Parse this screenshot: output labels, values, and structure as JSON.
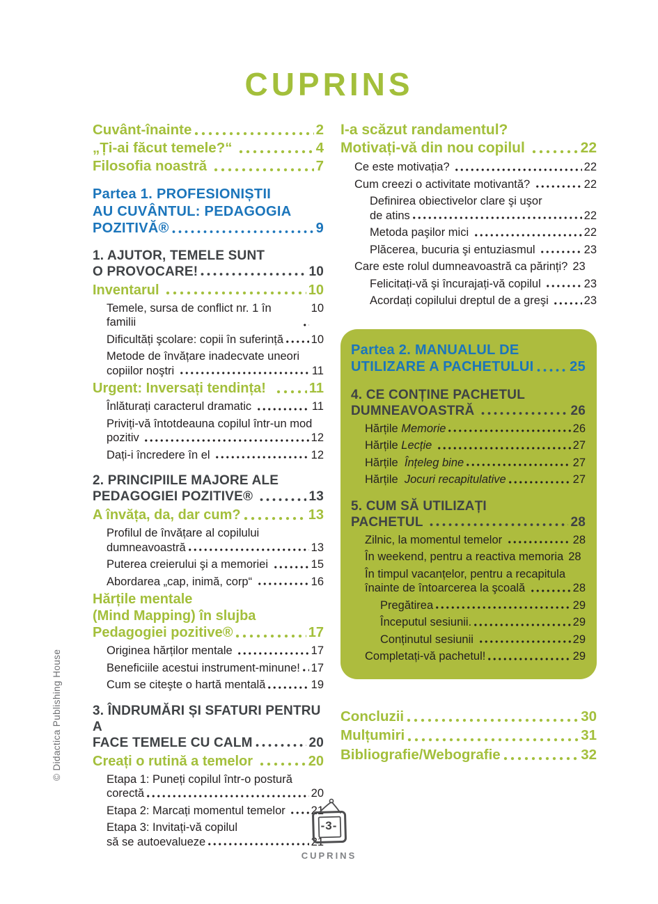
{
  "title": "CUPRINS",
  "copyright": "© Didactica Publishing House",
  "footer": {
    "page_number": "-3-",
    "label": "CUPRINS",
    "frame_icon": "hand-drawn hanging picture frame"
  },
  "colors": {
    "green": "#a3bf3b",
    "box_green": "#adbc3e",
    "blue": "#1b75bb",
    "dark": "#3f4245",
    "body": "#231f20",
    "gray": "#808285"
  },
  "toc": {
    "left": [
      {
        "style": "front",
        "end": "Cuvânt-înainte",
        "page": "2"
      },
      {
        "style": "front",
        "end": "„Ți-ai făcut temele?“ ",
        "page": "4"
      },
      {
        "style": "front",
        "end": "Filosofia noastră ",
        "page": "7"
      },
      {
        "style": "part",
        "lines": [
          "Partea 1. PROFESIONIȘTII",
          "AU CUVÂNTUL: PEDAGOGIA"
        ],
        "end": "POZITIVĂ®",
        "page": "9"
      },
      {
        "style": "chapter",
        "lines": [
          "1. AJUTOR, TEMELE SUNT"
        ],
        "end": "O PROVOCARE!",
        "page": "10"
      },
      {
        "style": "section",
        "end": "Inventarul ",
        "page": "10"
      },
      {
        "style": "sub",
        "end": "Temele, sursa de conflict nr. 1 în familii",
        "page": "10"
      },
      {
        "style": "sub",
        "end": "Dificultăți şcolare: copii în suferință",
        "page": "10"
      },
      {
        "style": "sub",
        "lines": [
          "Metode de învățare inadecvate uneori"
        ],
        "end": "copiilor noştri ",
        "page": "11"
      },
      {
        "style": "section",
        "end": "Urgent: Inversați tendința!  ",
        "page": "11"
      },
      {
        "style": "sub",
        "end": "Înlăturați caracterul dramatic ",
        "page": "11"
      },
      {
        "style": "sub",
        "lines": [
          "Priviți-vă întotdeauna copilul într-un mod"
        ],
        "end": "pozitiv ",
        "page": "12"
      },
      {
        "style": "sub",
        "end": "Dați-i încredere în el ",
        "page": "12"
      },
      {
        "style": "chapter",
        "lines": [
          "2. PRINCIPIILE MAJORE ALE"
        ],
        "end": "PEDAGOGIEI POZITIVE® ",
        "page": "13"
      },
      {
        "style": "section",
        "end": "A învăța, da, dar cum?",
        "page": "13"
      },
      {
        "style": "sub",
        "lines": [
          "Profilul de învățare al copilului"
        ],
        "end": "dumneavoastră",
        "page": "13"
      },
      {
        "style": "sub",
        "end": "Puterea creierului şi a memoriei ",
        "page": "15"
      },
      {
        "style": "sub",
        "end": "Abordarea „cap, inimă, corp“ ",
        "page": "16"
      },
      {
        "style": "section",
        "lines": [
          "Hărțile mentale",
          "(Mind Mapping) în slujba"
        ],
        "end": "Pedagogiei pozitive®",
        "page": "17"
      },
      {
        "style": "sub",
        "end": "Originea hărților mentale ",
        "page": "17"
      },
      {
        "style": "sub",
        "end": "Beneficiile acestui instrument-minune!",
        "page": "17"
      },
      {
        "style": "sub",
        "end": "Cum se citeşte o hartă mentală",
        "page": "19"
      },
      {
        "style": "chapter",
        "lines": [
          "3. ÎNDRUMĂRI ȘI SFATURI PENTRU A"
        ],
        "end": "FACE TEMELE CU CALM",
        "page": " 20"
      },
      {
        "style": "section",
        "end": "Creați o rutină a temelor ",
        "page": " 20"
      },
      {
        "style": "sub",
        "lines": [
          "Etapa 1: Puneți copilul într-o postură"
        ],
        "end": "corectă",
        "page": "20"
      },
      {
        "style": "sub",
        "end": "Etapa 2: Marcați momentul temelor ",
        "page": "21"
      },
      {
        "style": "sub",
        "lines": [
          "Etapa 3: Invitați-vă copilul"
        ],
        "end": "să se autoevalueze",
        "page": "21"
      }
    ],
    "right_top": [
      {
        "style": "bigsection",
        "lines": [
          "I-a scăzut randamentul?"
        ],
        "end": "Motivați-vă din nou copilul ",
        "page": "22"
      },
      {
        "style": "sub",
        "end": "Ce este motivația? ",
        "page": "22"
      },
      {
        "style": "sub",
        "end": "Cum creezi o activitate motivantă? ",
        "page": "22"
      },
      {
        "style": "subsub",
        "lines": [
          "Definirea obiectivelor clare şi uşor"
        ],
        "end": "de atins",
        "page": "22"
      },
      {
        "style": "subsub",
        "end": "Metoda paşilor mici ",
        "page": "22"
      },
      {
        "style": "subsub",
        "end": "Plăcerea, bucuria şi entuziasmul ",
        "page": "23"
      },
      {
        "style": "sub",
        "end": "Care este rolul dumneavoastră ca părinți?",
        "page": "23",
        "dots": false
      },
      {
        "style": "subsub",
        "end": "Felicitați-vă şi încurajați-vă copilul ",
        "page": "23"
      },
      {
        "style": "subsub",
        "end": "Acordați copilului dreptul de a greşi ",
        "page": "23"
      }
    ],
    "part2_box": [
      {
        "style": "part",
        "lines": [
          "Partea 2. MANUALUL DE"
        ],
        "end": "UTILIZARE A PACHETULUI",
        "page": "25"
      },
      {
        "style": "chapter",
        "lines": [
          "4. CE CONȚINE PACHETUL"
        ],
        "end": "DUMNEAVOASTRĂ ",
        "page": "26"
      },
      {
        "style": "sub",
        "end": "Hărțile ",
        "italic": "Memorie",
        "page": "26"
      },
      {
        "style": "sub",
        "end": "Hărțile ",
        "italic": "Lecție ",
        "page": "27"
      },
      {
        "style": "sub",
        "end": "Hărțile  ",
        "italic": "Înțeleg bine",
        "page": "27"
      },
      {
        "style": "sub",
        "end": "Hărțile  ",
        "italic": "Jocuri recapitulative",
        "page": "27"
      },
      {
        "style": "chapter",
        "lines": [
          "5. CUM SĂ UTILIZAȚI"
        ],
        "end": "PACHETUL ",
        "page": "28"
      },
      {
        "style": "sub",
        "end": "Zilnic, la momentul temelor ",
        "page": "28"
      },
      {
        "style": "sub",
        "end": "În weekend, pentru a reactiva memoria",
        "page": "28",
        "dots": false
      },
      {
        "style": "sub",
        "lines": [
          "În timpul vacanțelor, pentru a recapitula"
        ],
        "end": "înainte de întoarcerea la şcoală ",
        "page": "28"
      },
      {
        "style": "subsub",
        "end": "Pregătirea",
        "page": "29"
      },
      {
        "style": "subsub",
        "end": "Începutul sesiunii.",
        "page": "29"
      },
      {
        "style": "subsub",
        "end": "Conținutul sesiunii ",
        "page": "29"
      },
      {
        "style": "sub",
        "end": "Completați-vă pachetul!",
        "page": "29"
      }
    ],
    "right_bottom": [
      {
        "style": "front",
        "end": "Concluzii",
        "page": "30"
      },
      {
        "style": "front",
        "end": "Mulțumiri",
        "page": "31"
      },
      {
        "style": "front",
        "end": "Bibliografie/Webografie",
        "page": "32"
      }
    ]
  }
}
